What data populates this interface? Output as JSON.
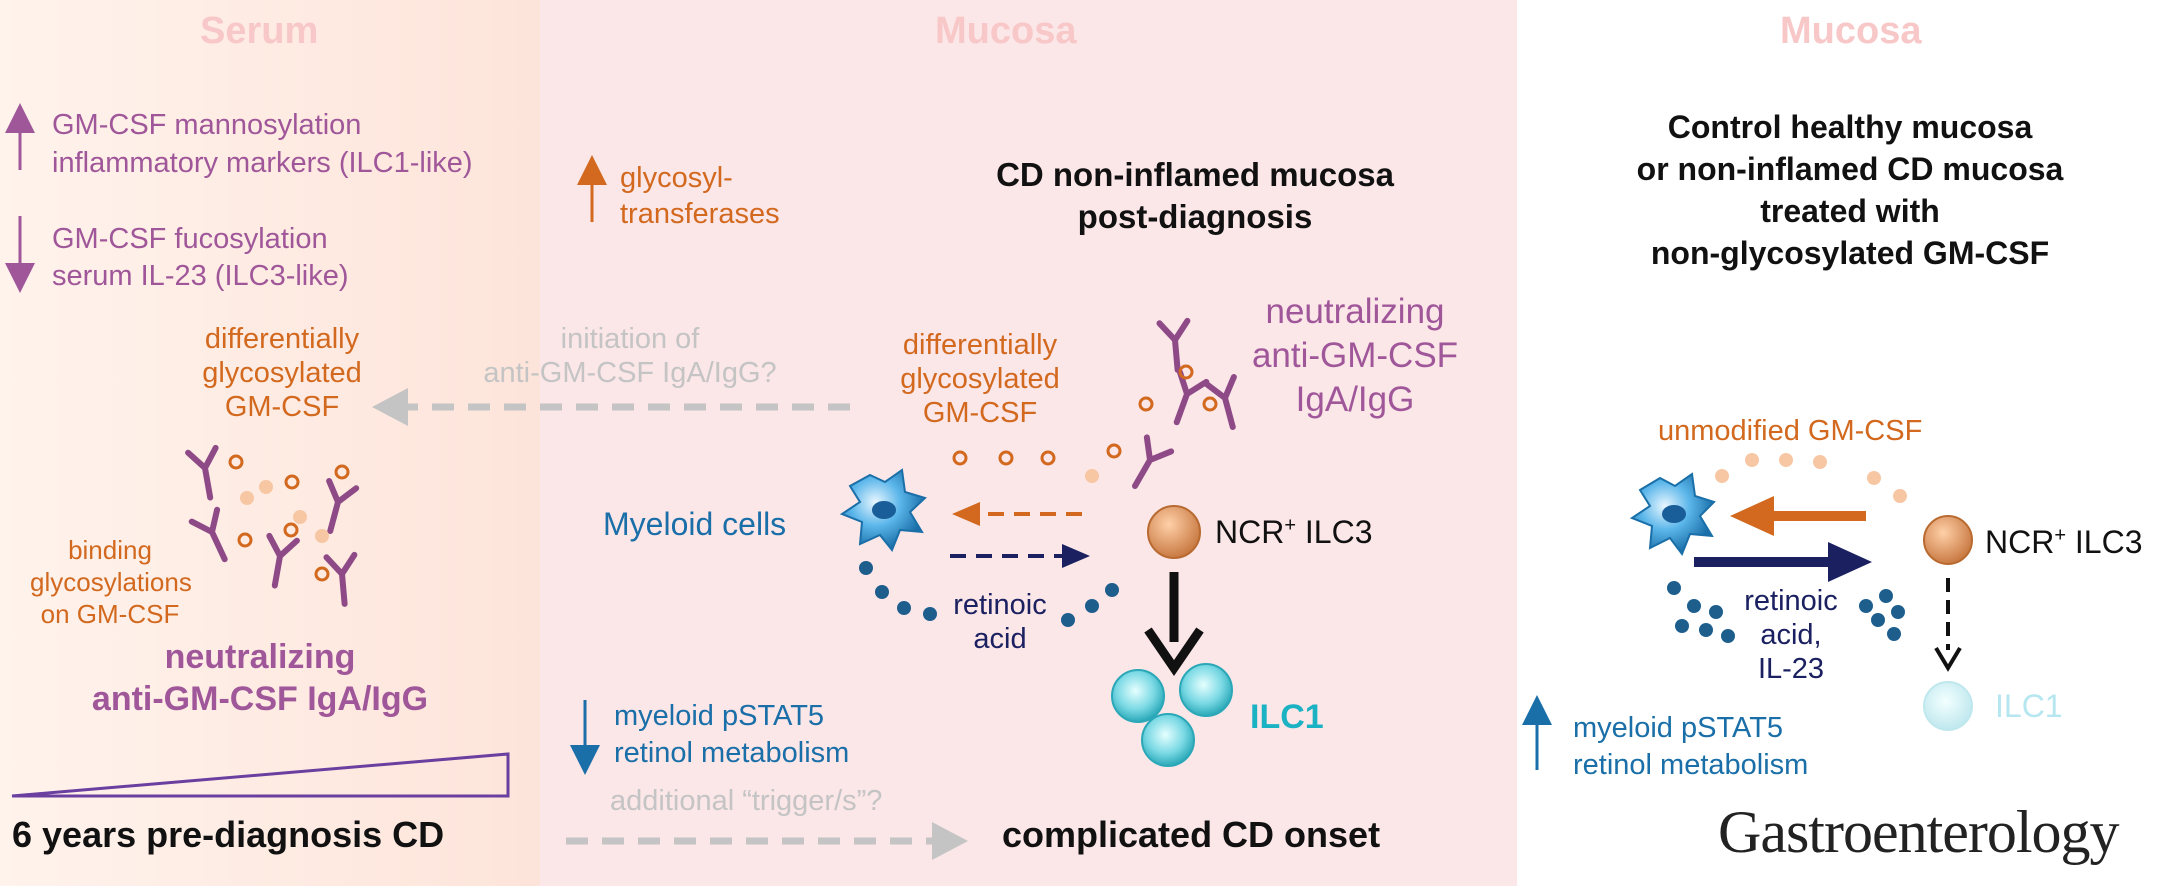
{
  "colors": {
    "serum_bg": "#fdeee7",
    "mucosa_bg": "#fbe6e8",
    "title_pink": "#f8c7c7",
    "purple": "#a0579a",
    "orange": "#d2691e",
    "blue": "#1a6fa8",
    "navy": "#1a2060",
    "grey": "#bdbdbd",
    "teal": "#1bb3c4"
  },
  "serum": {
    "title": "Serum",
    "up_markers": [
      "GM-CSF mannosylation",
      "inflammatory markers (ILC1-like)"
    ],
    "down_markers": [
      "GM-CSF fucosylation",
      "serum IL-23 (ILC3-like)"
    ],
    "diff_gm_csf": [
      "differentially",
      "glycosylated",
      "GM-CSF"
    ],
    "binding": [
      "binding",
      "glycosylations",
      "on GM-CSF"
    ],
    "neutralizing": [
      "neutralizing",
      "anti-GM-CSF IgA/IgG"
    ],
    "timeline_label": "6 years pre-diagnosis CD"
  },
  "mucosa_cd": {
    "title": "Mucosa",
    "glyco": [
      "glycosyl-",
      "transferases"
    ],
    "heading": [
      "CD non-inflamed mucosa",
      "post-diagnosis"
    ],
    "initiation": [
      "initiation of",
      "anti-GM-CSF IgA/IgG?"
    ],
    "diff_gm_csf": [
      "differentially",
      "glycosylated",
      "GM-CSF"
    ],
    "neutralizing": [
      "neutralizing",
      "anti-GM-CSF",
      "IgA/IgG"
    ],
    "myeloid": "Myeloid cells",
    "ncr_main": "NCR",
    "ncr_sup": "+",
    "ncr_tail": " ILC3",
    "retinoic": [
      "retinoic",
      "acid"
    ],
    "ilc1": "ILC1",
    "down_markers": [
      "myeloid pSTAT5",
      "retinol metabolism"
    ],
    "trigger": "additional “trigger/s”?",
    "onset": "complicated CD onset"
  },
  "control": {
    "title": "Mucosa",
    "heading": [
      "Control healthy mucosa",
      "or non-inflamed CD mucosa",
      "treated with",
      "non-glycosylated GM-CSF"
    ],
    "unmodified": "unmodified GM-CSF",
    "ncr_main": "NCR",
    "ncr_sup": "+",
    "ncr_tail": " ILC3",
    "retinoic": [
      "retinoic",
      "acid,",
      "IL-23"
    ],
    "ilc1": "ILC1",
    "up_markers": [
      "myeloid pSTAT5",
      "retinol metabolism"
    ],
    "journal": "Gastroenterology"
  }
}
